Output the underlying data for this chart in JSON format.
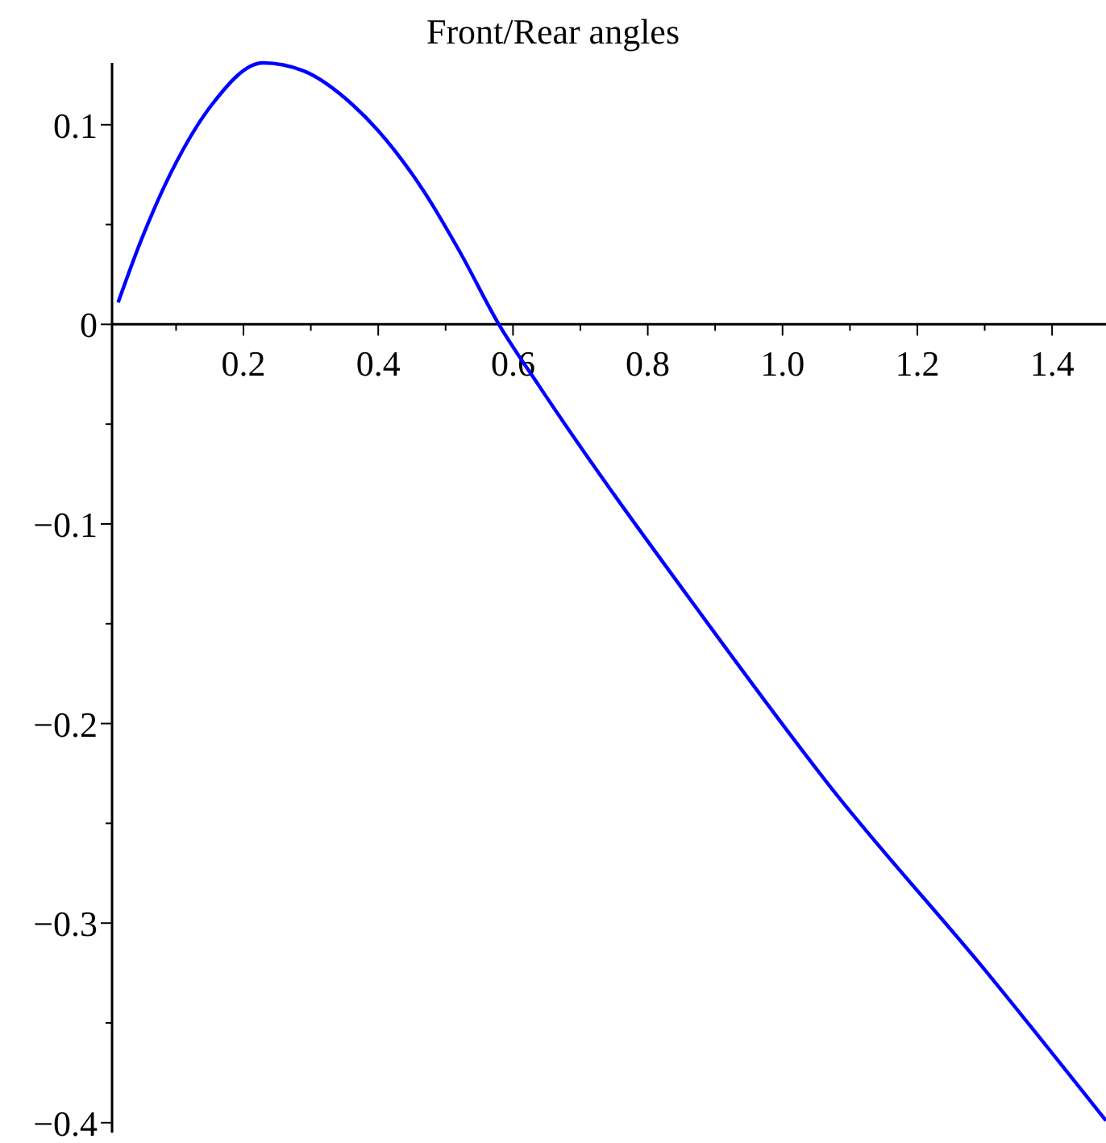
{
  "chart_data": {
    "type": "line",
    "title": "Front/Rear angles",
    "x": [
      0.014,
      0.048,
      0.1,
      0.153,
      0.229,
      0.289,
      0.362,
      0.4,
      0.467,
      0.52,
      0.579,
      0.639,
      0.885,
      1.074,
      1.304,
      1.48
    ],
    "series": [
      {
        "color": "#0000ff",
        "values": [
          0.011,
          0.042,
          0.081,
          0.11,
          0.131,
          0.127,
          0.11,
          0.097,
          0.067,
          0.037,
          0,
          -0.031,
          -0.148,
          -0.233,
          -0.325,
          -0.399
        ]
      }
    ],
    "xlim": [
      0.005,
      1.48
    ],
    "ylim": [
      -0.405,
      0.131
    ],
    "xticks": [
      {
        "value": 0.1,
        "label": null
      },
      0.2,
      {
        "value": 0.3,
        "label": null
      },
      0.4,
      {
        "value": 0.5,
        "label": null
      },
      0.6,
      {
        "value": 0.7,
        "label": null
      },
      0.8,
      {
        "value": 0.9,
        "label": null
      },
      {
        "value": 1,
        "label": "1.0"
      },
      {
        "value": 1.1,
        "label": null
      },
      1.2,
      {
        "value": 1.3,
        "label": null
      },
      1.4
    ],
    "yticks": [
      {
        "value": 0.1,
        "label": "0.1"
      },
      {
        "value": 0.05,
        "label": null
      },
      0,
      {
        "value": -0.05,
        "label": null
      },
      {
        "value": -0.1,
        "label": "−0.1"
      },
      {
        "value": -0.15,
        "label": null
      },
      {
        "value": -0.2,
        "label": "−0.2"
      },
      {
        "value": -0.25,
        "label": null
      },
      {
        "value": -0.3,
        "label": "−0.3"
      },
      {
        "value": -0.35,
        "label": null
      },
      {
        "value": -0.4,
        "label": "−0.4"
      }
    ],
    "grid": false,
    "marker": "none",
    "line_style": "solid"
  }
}
